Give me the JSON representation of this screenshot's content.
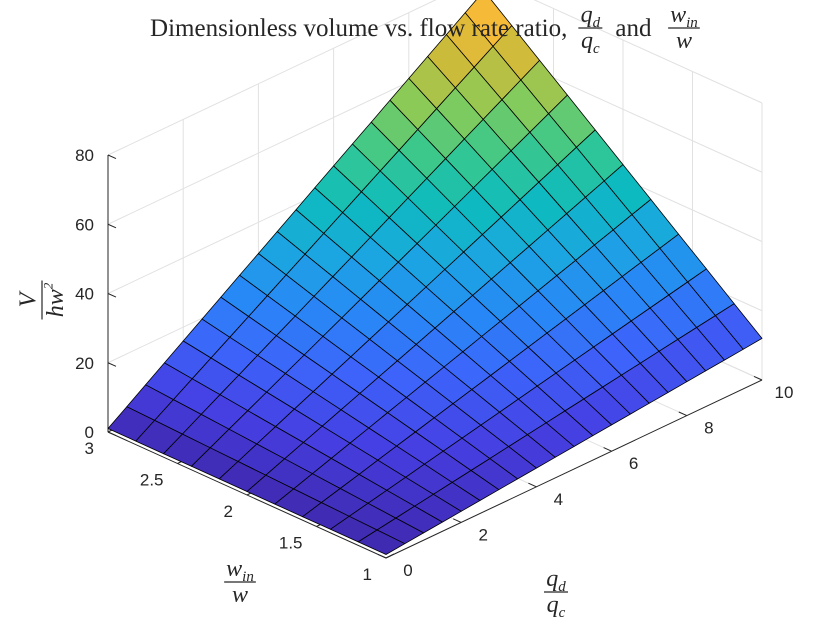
{
  "chart_data": {
    "type": "surface",
    "title": {
      "main": "Dimensionless volume vs. flow rate ratio,",
      "frac1": {
        "num_var": "q",
        "num_sub": "d",
        "den_var": "q",
        "den_sub": "c"
      },
      "connector": "and",
      "frac2": {
        "num_var": "w",
        "num_sub": "in",
        "den_var": "w",
        "den_sub": ""
      }
    },
    "xlabel": {
      "num_var": "q",
      "num_sub": "d",
      "den_var": "q",
      "den_sub": "c"
    },
    "ylabel": {
      "num_var": "w",
      "num_sub": "in",
      "den_var": "w",
      "den_sub": ""
    },
    "zlabel": {
      "num_var": "V",
      "den_var": "hw",
      "den_sup": "2"
    },
    "x_ticks": [
      "0",
      "2",
      "4",
      "6",
      "8",
      "10"
    ],
    "y_ticks": [
      "1",
      "1.5",
      "2",
      "2.5",
      "3"
    ],
    "z_ticks": [
      "0",
      "20",
      "40",
      "60",
      "80"
    ],
    "xlim": [
      0,
      10
    ],
    "ylim": [
      1,
      3
    ],
    "zlim": [
      0,
      80
    ],
    "x_grid": [
      0,
      0.5,
      1,
      1.5,
      2,
      2.5,
      3,
      3.5,
      4,
      4.5,
      5,
      5.5,
      6,
      6.5,
      7,
      7.5,
      8,
      8.5,
      9,
      9.5,
      10
    ],
    "y_grid": [
      1,
      1.2,
      1.4,
      1.6,
      1.8,
      2,
      2.2,
      2.4,
      2.6,
      2.8,
      3
    ],
    "corner_values": [
      {
        "x": 0,
        "y": 1,
        "z": 1
      },
      {
        "x": 10,
        "y": 1,
        "z": 12
      },
      {
        "x": 0,
        "y": 3,
        "z": 1
      },
      {
        "x": 10,
        "y": 3,
        "z": 76
      }
    ],
    "colormap": "parula",
    "grid": true
  }
}
